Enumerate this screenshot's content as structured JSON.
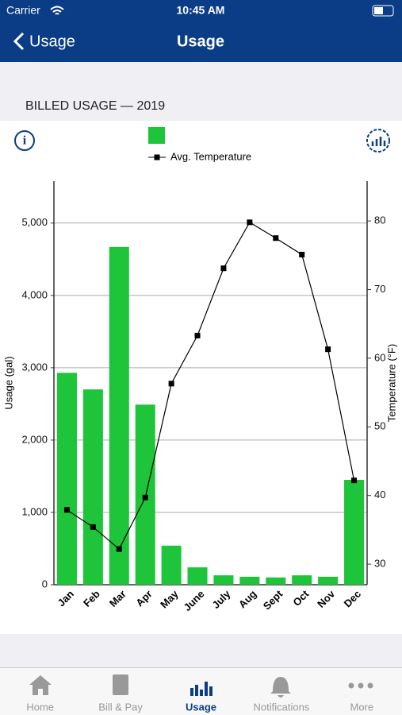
{
  "status_bar": {
    "carrier": "Carrier",
    "time": "10:45 AM"
  },
  "nav": {
    "back": "Usage",
    "title": "Usage"
  },
  "section_title": "BILLED USAGE — 2019",
  "chart_data": {
    "type": "combo",
    "categories": [
      "Jan",
      "Feb",
      "Mar",
      "Apr",
      "May",
      "June",
      "July",
      "Aug",
      "Sept",
      "Oct",
      "Nov",
      "Dec"
    ],
    "series": [
      {
        "type": "bar",
        "color": "#1ec43a",
        "values": [
          2930,
          2700,
          4670,
          2490,
          540,
          240,
          130,
          110,
          100,
          130,
          110,
          1450
        ]
      },
      {
        "type": "line",
        "name": "Avg. Temperature",
        "color": "#000000",
        "axis": "y2",
        "values": [
          37.9,
          35.4,
          32.2,
          39.7,
          56.3,
          63.3,
          73.1,
          79.8,
          77.5,
          75.1,
          61.3,
          42.2
        ]
      }
    ],
    "ylabel": "Usage (gal)",
    "y2label": "Temperature (°F)",
    "ylim": [
      0,
      5580
    ],
    "yticks": [
      0,
      {
        "value": 1000,
        "label": "1,000"
      },
      {
        "value": 2000,
        "label": "2,000"
      },
      {
        "value": 3000,
        "label": "3,000"
      },
      {
        "value": 4000,
        "label": "4,000"
      },
      {
        "value": 5000,
        "label": "5,000"
      }
    ],
    "y2lim": [
      27,
      85.8
    ],
    "y2ticks": [
      30,
      40,
      50,
      60,
      70,
      80
    ],
    "grid": true
  },
  "tabs": [
    {
      "label": "Home"
    },
    {
      "label": "Bill & Pay"
    },
    {
      "label": "Usage"
    },
    {
      "label": "Notifications"
    },
    {
      "label": "More"
    }
  ],
  "active_tab": 2
}
